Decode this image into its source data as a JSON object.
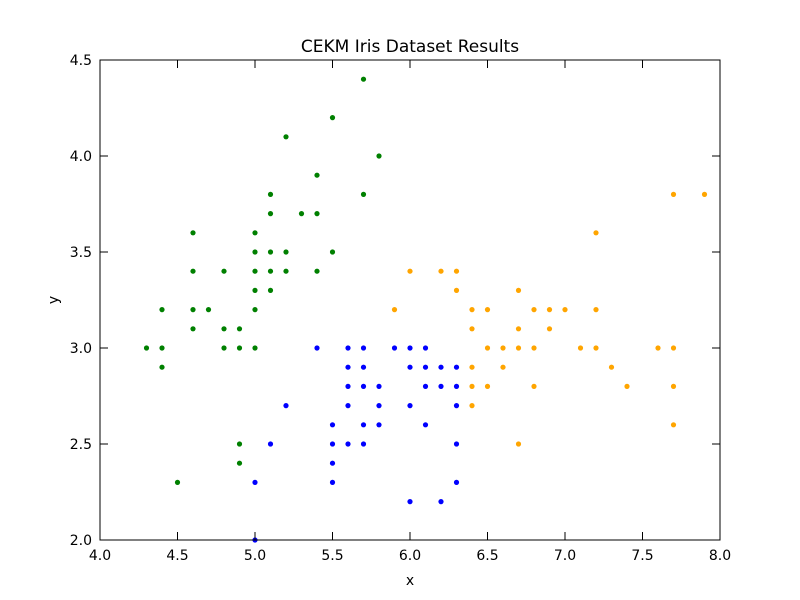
{
  "chart_data": {
    "type": "scatter",
    "title": "CEKM Iris Dataset Results",
    "xlabel": "x",
    "ylabel": "y",
    "xlim": [
      4.0,
      8.0
    ],
    "ylim": [
      2.0,
      4.5
    ],
    "xticks": [
      "4.0",
      "4.5",
      "5.0",
      "5.5",
      "6.0",
      "6.5",
      "7.0",
      "7.5",
      "8.0"
    ],
    "yticks": [
      "2.0",
      "2.5",
      "3.0",
      "3.5",
      "4.0",
      "4.5"
    ],
    "grid": false,
    "series": [
      {
        "color": "#008000",
        "points": [
          [
            4.3,
            3.0
          ],
          [
            4.4,
            3.0
          ],
          [
            4.4,
            2.9
          ],
          [
            4.4,
            3.2
          ],
          [
            4.5,
            2.3
          ],
          [
            4.6,
            3.1
          ],
          [
            4.6,
            3.2
          ],
          [
            4.6,
            3.4
          ],
          [
            4.6,
            3.6
          ],
          [
            4.7,
            3.2
          ],
          [
            4.8,
            3.0
          ],
          [
            4.8,
            3.1
          ],
          [
            4.8,
            3.4
          ],
          [
            4.9,
            3.0
          ],
          [
            4.9,
            3.1
          ],
          [
            4.9,
            2.5
          ],
          [
            4.9,
            2.4
          ],
          [
            5.0,
            3.0
          ],
          [
            5.0,
            3.2
          ],
          [
            5.0,
            3.3
          ],
          [
            5.0,
            3.4
          ],
          [
            5.0,
            3.5
          ],
          [
            5.0,
            3.6
          ],
          [
            5.1,
            3.3
          ],
          [
            5.1,
            3.4
          ],
          [
            5.1,
            3.5
          ],
          [
            5.1,
            3.7
          ],
          [
            5.1,
            3.8
          ],
          [
            5.2,
            3.4
          ],
          [
            5.2,
            3.5
          ],
          [
            5.2,
            4.1
          ],
          [
            5.3,
            3.7
          ],
          [
            5.4,
            3.4
          ],
          [
            5.4,
            3.7
          ],
          [
            5.4,
            3.9
          ],
          [
            5.5,
            3.5
          ],
          [
            5.5,
            4.2
          ],
          [
            5.7,
            3.8
          ],
          [
            5.7,
            4.4
          ],
          [
            5.8,
            4.0
          ]
        ]
      },
      {
        "color": "#0000ff",
        "points": [
          [
            5.0,
            2.0
          ],
          [
            5.0,
            2.3
          ],
          [
            5.1,
            2.5
          ],
          [
            5.2,
            2.7
          ],
          [
            5.4,
            3.0
          ],
          [
            5.5,
            2.3
          ],
          [
            5.5,
            2.4
          ],
          [
            5.5,
            2.5
          ],
          [
            5.5,
            2.6
          ],
          [
            5.6,
            2.5
          ],
          [
            5.6,
            2.7
          ],
          [
            5.6,
            2.8
          ],
          [
            5.6,
            2.9
          ],
          [
            5.6,
            3.0
          ],
          [
            5.7,
            2.5
          ],
          [
            5.7,
            2.6
          ],
          [
            5.7,
            2.8
          ],
          [
            5.7,
            2.9
          ],
          [
            5.7,
            3.0
          ],
          [
            5.8,
            2.6
          ],
          [
            5.8,
            2.7
          ],
          [
            5.8,
            2.8
          ],
          [
            5.9,
            3.0
          ],
          [
            6.0,
            2.2
          ],
          [
            6.0,
            2.7
          ],
          [
            6.0,
            2.9
          ],
          [
            6.0,
            3.0
          ],
          [
            6.1,
            2.6
          ],
          [
            6.1,
            2.8
          ],
          [
            6.1,
            2.9
          ],
          [
            6.1,
            3.0
          ],
          [
            6.2,
            2.2
          ],
          [
            6.2,
            2.8
          ],
          [
            6.2,
            2.9
          ],
          [
            6.3,
            2.3
          ],
          [
            6.3,
            2.5
          ],
          [
            6.3,
            2.7
          ],
          [
            6.3,
            2.8
          ],
          [
            6.3,
            2.9
          ]
        ]
      },
      {
        "color": "#ffa500",
        "points": [
          [
            5.9,
            3.2
          ],
          [
            6.0,
            3.4
          ],
          [
            6.2,
            3.4
          ],
          [
            6.3,
            3.3
          ],
          [
            6.3,
            3.4
          ],
          [
            6.4,
            2.7
          ],
          [
            6.4,
            2.8
          ],
          [
            6.4,
            2.9
          ],
          [
            6.4,
            3.1
          ],
          [
            6.4,
            3.2
          ],
          [
            6.5,
            2.8
          ],
          [
            6.5,
            3.0
          ],
          [
            6.5,
            3.2
          ],
          [
            6.6,
            2.9
          ],
          [
            6.6,
            3.0
          ],
          [
            6.7,
            2.5
          ],
          [
            6.7,
            3.0
          ],
          [
            6.7,
            3.1
          ],
          [
            6.7,
            3.3
          ],
          [
            6.8,
            2.8
          ],
          [
            6.8,
            3.0
          ],
          [
            6.8,
            3.2
          ],
          [
            6.9,
            3.1
          ],
          [
            6.9,
            3.2
          ],
          [
            7.0,
            3.2
          ],
          [
            7.1,
            3.0
          ],
          [
            7.2,
            3.0
          ],
          [
            7.2,
            3.2
          ],
          [
            7.2,
            3.6
          ],
          [
            7.3,
            2.9
          ],
          [
            7.4,
            2.8
          ],
          [
            7.6,
            3.0
          ],
          [
            7.7,
            2.6
          ],
          [
            7.7,
            2.8
          ],
          [
            7.7,
            3.0
          ],
          [
            7.7,
            3.8
          ],
          [
            7.9,
            3.8
          ]
        ]
      }
    ]
  }
}
